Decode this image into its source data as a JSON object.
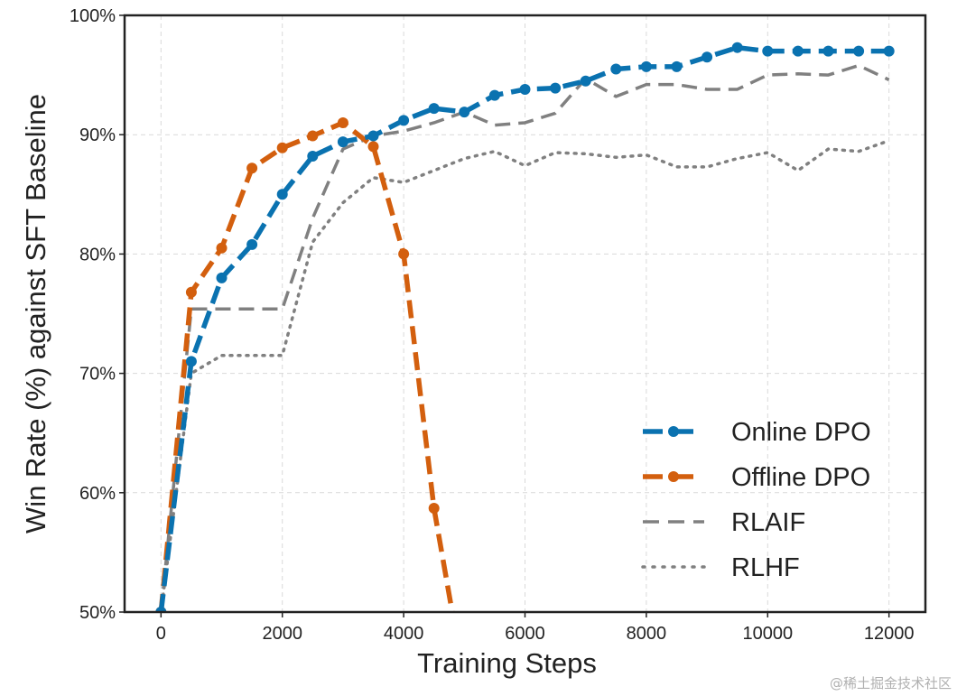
{
  "watermark": "@稀土掘金技术社区",
  "chart_data": {
    "type": "line",
    "xlabel": "Training Steps",
    "ylabel": "Win Rate (%) against SFT Baseline",
    "xlim": [
      -600,
      12600
    ],
    "ylim": [
      50,
      100
    ],
    "xticks": [
      0,
      2000,
      4000,
      6000,
      8000,
      10000,
      12000
    ],
    "yticks": [
      50,
      60,
      70,
      80,
      90,
      100
    ],
    "ytick_labels": [
      "50%",
      "60%",
      "70%",
      "80%",
      "90%",
      "100%"
    ],
    "grid": true,
    "legend_position": "bottom-right",
    "series": [
      {
        "name": "Online DPO",
        "color": "#0a72b0",
        "style": "dashed-marker",
        "x": [
          0,
          500,
          1000,
          1500,
          2000,
          2500,
          3000,
          3500,
          4000,
          4500,
          5000,
          5500,
          6000,
          6500,
          7000,
          7500,
          8000,
          8500,
          9000,
          9500,
          10000,
          10500,
          11000,
          11500,
          12000
        ],
        "y": [
          50.0,
          71.0,
          78.0,
          80.8,
          85.0,
          88.2,
          89.4,
          89.9,
          91.2,
          92.2,
          91.9,
          93.3,
          93.8,
          93.9,
          94.5,
          95.5,
          95.7,
          95.7,
          96.5,
          97.3,
          97.0,
          97.0,
          97.0,
          97.0,
          97.0
        ]
      },
      {
        "name": "Offline DPO",
        "color": "#d35f0e",
        "style": "dashed-marker",
        "x": [
          0,
          500,
          1000,
          1500,
          2000,
          2500,
          3000,
          3500,
          4000,
          4500,
          4800
        ],
        "y": [
          50.0,
          76.8,
          80.5,
          87.2,
          88.9,
          89.9,
          91.0,
          89.0,
          80.0,
          58.7,
          50.0
        ],
        "marker_count": 10
      },
      {
        "name": "RLAIF",
        "color": "#808080",
        "style": "dashed",
        "x": [
          0,
          500,
          1000,
          1500,
          2000,
          2500,
          3000,
          3500,
          4000,
          4500,
          5000,
          5500,
          6000,
          6500,
          7000,
          7500,
          8000,
          8500,
          9000,
          9500,
          10000,
          10500,
          11000,
          11500,
          12000
        ],
        "y": [
          50.0,
          75.4,
          75.4,
          75.4,
          75.4,
          83.0,
          88.8,
          89.9,
          90.3,
          91.0,
          91.9,
          90.8,
          91.0,
          91.8,
          94.7,
          93.2,
          94.2,
          94.2,
          93.8,
          93.8,
          95.0,
          95.1,
          95.0,
          95.8,
          94.6
        ]
      },
      {
        "name": "RLHF",
        "color": "#808080",
        "style": "dotted",
        "x": [
          0,
          500,
          1000,
          1500,
          2000,
          2500,
          3000,
          3500,
          4000,
          4500,
          5000,
          5500,
          6000,
          6500,
          7000,
          7500,
          8000,
          8500,
          9000,
          9500,
          10000,
          10500,
          11000,
          11500,
          12000
        ],
        "y": [
          50.0,
          70.0,
          71.5,
          71.5,
          71.5,
          81.0,
          84.3,
          86.4,
          86.0,
          87.0,
          88.0,
          88.6,
          87.4,
          88.5,
          88.4,
          88.1,
          88.3,
          87.3,
          87.3,
          88.0,
          88.5,
          87.0,
          88.8,
          88.6,
          89.5
        ]
      }
    ]
  }
}
